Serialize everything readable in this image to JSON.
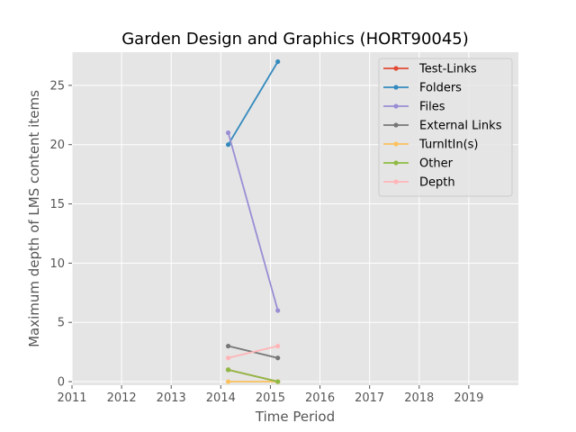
{
  "chart_data": {
    "type": "line",
    "title": "Garden Design and Graphics (HORT90045)",
    "xlabel": "Time Period",
    "ylabel": "Maximum depth of LMS content items",
    "xlim": [
      2011,
      2020
    ],
    "ylim": [
      -0.3,
      27.8
    ],
    "xticks": [
      "2011",
      "2012",
      "2013",
      "2014",
      "2015",
      "2016",
      "2017",
      "2018",
      "2019"
    ],
    "yticks": [
      "0",
      "5",
      "10",
      "15",
      "20",
      "25"
    ],
    "grid": true,
    "legend_position": "top-right",
    "x": [
      2014.15,
      2015.15
    ],
    "series": [
      {
        "name": "Test-Links",
        "color": "#E24A33",
        "values": [
          1,
          0
        ]
      },
      {
        "name": "Folders",
        "color": "#348ABD",
        "values": [
          20,
          27
        ]
      },
      {
        "name": "Files",
        "color": "#988ED5",
        "values": [
          21,
          6
        ]
      },
      {
        "name": "External Links",
        "color": "#777777",
        "values": [
          3,
          2
        ]
      },
      {
        "name": "TurnItIn(s)",
        "color": "#FBC15E",
        "values": [
          0,
          0
        ]
      },
      {
        "name": "Other",
        "color": "#8EBA42",
        "values": [
          1,
          0
        ]
      },
      {
        "name": "Depth",
        "color": "#FFB5B8",
        "values": [
          2,
          3
        ]
      }
    ]
  }
}
